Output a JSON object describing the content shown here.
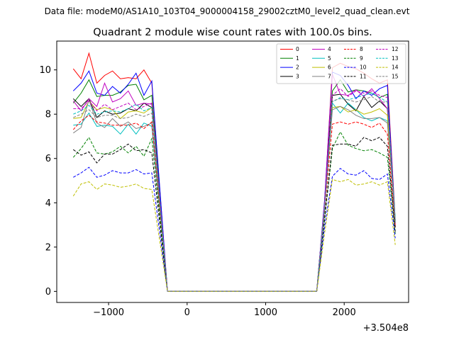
{
  "figure": {
    "suptitle": "Data file: modeM0/AS1A10_103T04_9000004158_29002cztM0_level2_quad_clean.evt"
  },
  "chart_data": {
    "type": "line",
    "title": "Quadrant 2 module wise count rates with 100.0s bins.",
    "xlabel": "",
    "ylabel": "",
    "x_offset_label": "+3.504e8",
    "xlim": [
      -1660,
      2820
    ],
    "ylim": [
      -0.5,
      11.3
    ],
    "xticks": [
      -1000,
      0,
      1000,
      2000
    ],
    "xtick_labels": [
      "−1000",
      "0",
      "1000",
      "2000"
    ],
    "yticks": [
      0,
      2,
      4,
      6,
      8,
      10
    ],
    "ytick_labels": [
      "0",
      "2",
      "4",
      "6",
      "8",
      "10"
    ],
    "grid": false,
    "legend": {
      "placement": "top-right",
      "columns": 4
    },
    "x": [
      -1450,
      -1350,
      -1250,
      -1150,
      -1050,
      -950,
      -850,
      -750,
      -650,
      -550,
      -450,
      -250,
      -150,
      -50,
      50,
      150,
      250,
      350,
      450,
      550,
      650,
      750,
      850,
      950,
      1050,
      1150,
      1250,
      1350,
      1450,
      1550,
      1650,
      1750,
      1850,
      1950,
      2050,
      2150,
      2250,
      2350,
      2450,
      2550,
      2650
    ],
    "series": [
      {
        "name": "0",
        "color": "#ff0000",
        "dash": "solid",
        "values": [
          10.05,
          9.6,
          10.75,
          9.4,
          9.75,
          9.95,
          9.6,
          9.65,
          9.6,
          10,
          9.4,
          0,
          0,
          0,
          0,
          0,
          0,
          0,
          0,
          0,
          0,
          0,
          0,
          0,
          0,
          0,
          0,
          0,
          0,
          0,
          0,
          4,
          10.1,
          10.3,
          10.15,
          10.05,
          9.85,
          9.6,
          9.4,
          9.55,
          3.2
        ]
      },
      {
        "name": "1",
        "color": "#008000",
        "dash": "solid",
        "values": [
          8.5,
          8.95,
          9.55,
          8.8,
          8.85,
          8.85,
          9,
          9.3,
          9.35,
          8.65,
          8.85,
          0,
          0,
          0,
          0,
          0,
          0,
          0,
          0,
          0,
          0,
          0,
          0,
          0,
          0,
          0,
          0,
          0,
          0,
          0,
          0,
          4,
          9.05,
          9.55,
          9,
          9.1,
          9.05,
          8.95,
          8.75,
          8.9,
          3.2
        ]
      },
      {
        "name": "2",
        "color": "#0000ff",
        "dash": "solid",
        "values": [
          9.05,
          9.4,
          9.95,
          8.95,
          8.85,
          9.25,
          8.95,
          9.35,
          9.85,
          8.85,
          9.5,
          0,
          0,
          0,
          0,
          0,
          0,
          0,
          0,
          0,
          0,
          0,
          0,
          0,
          0,
          0,
          0,
          0,
          0,
          0,
          0,
          4.1,
          9.9,
          9.75,
          9.3,
          8.7,
          9.05,
          8.85,
          9.15,
          9.3,
          3.1
        ]
      },
      {
        "name": "3",
        "color": "#000000",
        "dash": "solid",
        "values": [
          8.7,
          8.35,
          8.7,
          7.85,
          8.15,
          8,
          8.05,
          8.25,
          8.15,
          8.5,
          8.3,
          0,
          0,
          0,
          0,
          0,
          0,
          0,
          0,
          0,
          0,
          0,
          0,
          0,
          0,
          0,
          0,
          0,
          0,
          0,
          0,
          3.9,
          8.85,
          8.9,
          8.45,
          8.15,
          8.8,
          8.3,
          8.6,
          8.25,
          2.9
        ]
      },
      {
        "name": "4",
        "color": "#bf00bf",
        "dash": "solid",
        "values": [
          8.6,
          8.15,
          8.7,
          8.35,
          9.4,
          8.55,
          8.7,
          9.05,
          8.4,
          8.5,
          8.45,
          0,
          0,
          0,
          0,
          0,
          0,
          0,
          0,
          0,
          0,
          0,
          0,
          0,
          0,
          0,
          0,
          0,
          0,
          0,
          0,
          4,
          9.8,
          8.9,
          8.85,
          9.1,
          8.8,
          9.15,
          8.7,
          8.25,
          3
        ]
      },
      {
        "name": "5",
        "color": "#00bfbf",
        "dash": "solid",
        "values": [
          7.5,
          7.55,
          8.05,
          7.45,
          7.5,
          7.45,
          7.1,
          7.55,
          7.1,
          7.6,
          7.45,
          0,
          0,
          0,
          0,
          0,
          0,
          0,
          0,
          0,
          0,
          0,
          0,
          0,
          0,
          0,
          0,
          0,
          0,
          0,
          0,
          3.8,
          8.5,
          8.05,
          8.5,
          8.2,
          7.85,
          7.7,
          7.85,
          7.7,
          3.3
        ]
      },
      {
        "name": "6",
        "color": "#bfbf00",
        "dash": "solid",
        "values": [
          7.8,
          7.85,
          8.6,
          8.2,
          8.3,
          8.2,
          7.8,
          8.1,
          8.15,
          8.05,
          8.3,
          0,
          0,
          0,
          0,
          0,
          0,
          0,
          0,
          0,
          0,
          0,
          0,
          0,
          0,
          0,
          0,
          0,
          0,
          0,
          0,
          3.7,
          8.3,
          8.35,
          8.1,
          8.2,
          8,
          8.1,
          8.25,
          7.95,
          3.1
        ]
      },
      {
        "name": "7",
        "color": "#808080",
        "dash": "solid",
        "values": [
          7.15,
          7.4,
          8.65,
          7.6,
          7.4,
          7.8,
          7.45,
          7.65,
          7.35,
          7.45,
          7.6,
          0,
          0,
          0,
          0,
          0,
          0,
          0,
          0,
          0,
          0,
          0,
          0,
          0,
          0,
          0,
          0,
          0,
          0,
          0,
          0,
          3.8,
          8.2,
          8.35,
          8.2,
          7.95,
          7.8,
          7.8,
          7.85,
          7.6,
          3.2
        ]
      },
      {
        "name": "8",
        "color": "#ff0000",
        "dash": "dashed",
        "values": [
          7.3,
          7.7,
          7.95,
          7.65,
          7.6,
          7.5,
          7.5,
          7.5,
          7.6,
          7.35,
          7.65,
          0,
          0,
          0,
          0,
          0,
          0,
          0,
          0,
          0,
          0,
          0,
          0,
          0,
          0,
          0,
          0,
          0,
          0,
          0,
          0,
          3.6,
          7.55,
          7.65,
          7.55,
          7.65,
          7.55,
          7.4,
          7.6,
          7.1,
          2.9
        ]
      },
      {
        "name": "9",
        "color": "#008000",
        "dash": "dashed",
        "values": [
          6.05,
          6.45,
          6.95,
          6.25,
          6.2,
          6.3,
          6.55,
          6.25,
          6.55,
          6.1,
          6.9,
          0,
          0,
          0,
          0,
          0,
          0,
          0,
          0,
          0,
          0,
          0,
          0,
          0,
          0,
          0,
          0,
          0,
          0,
          0,
          0,
          3.2,
          6.45,
          7.2,
          6.6,
          6.45,
          6.35,
          6.4,
          6.25,
          6.05,
          2.6
        ]
      },
      {
        "name": "10",
        "color": "#0000ff",
        "dash": "dashed",
        "values": [
          5.15,
          5.35,
          5.6,
          5.15,
          5.25,
          5.45,
          5.35,
          5.35,
          5.5,
          5.3,
          5.35,
          0,
          0,
          0,
          0,
          0,
          0,
          0,
          0,
          0,
          0,
          0,
          0,
          0,
          0,
          0,
          0,
          0,
          0,
          0,
          0,
          2.9,
          5.2,
          5.55,
          5.3,
          5.25,
          5.45,
          5.1,
          5.05,
          5.3,
          2.4
        ]
      },
      {
        "name": "11",
        "color": "#000000",
        "dash": "dashed",
        "values": [
          6.4,
          6.15,
          6.3,
          5.8,
          6.2,
          6.2,
          6.4,
          6.65,
          6.35,
          6.4,
          6.25,
          0,
          0,
          0,
          0,
          0,
          0,
          0,
          0,
          0,
          0,
          0,
          0,
          0,
          0,
          0,
          0,
          0,
          0,
          0,
          0,
          3.3,
          6.6,
          6.65,
          6.65,
          6.55,
          6.95,
          6.8,
          6.95,
          6.55,
          2.7
        ]
      },
      {
        "name": "12",
        "color": "#bf00bf",
        "dash": "dashed",
        "values": [
          8.25,
          8.25,
          8.6,
          8.15,
          8.45,
          8.2,
          8.35,
          8.5,
          8.2,
          8.35,
          8.5,
          0,
          0,
          0,
          0,
          0,
          0,
          0,
          0,
          0,
          0,
          0,
          0,
          0,
          0,
          0,
          0,
          0,
          0,
          0,
          0,
          3.7,
          8.85,
          9.15,
          8.8,
          9.05,
          8.95,
          9.05,
          8.85,
          8.75,
          3.1
        ]
      },
      {
        "name": "13",
        "color": "#00bfbf",
        "dash": "dashed",
        "values": [
          8,
          8.15,
          8.4,
          8,
          8.1,
          8.15,
          8.1,
          8.25,
          8.45,
          8.15,
          8.3,
          0,
          0,
          0,
          0,
          0,
          0,
          0,
          0,
          0,
          0,
          0,
          0,
          0,
          0,
          0,
          0,
          0,
          0,
          0,
          0,
          3.7,
          8.55,
          8.75,
          8.65,
          8.75,
          8.85,
          8.95,
          8.75,
          8.55,
          3.1
        ]
      },
      {
        "name": "14",
        "color": "#bfbf00",
        "dash": "dashed",
        "values": [
          4.3,
          4.85,
          4.95,
          4.6,
          4.85,
          4.8,
          4.7,
          4.75,
          4.85,
          4.65,
          4.6,
          0,
          0,
          0,
          0,
          0,
          0,
          0,
          0,
          0,
          0,
          0,
          0,
          0,
          0,
          0,
          0,
          0,
          0,
          0,
          0,
          2.6,
          5.05,
          4.95,
          5.05,
          4.8,
          4.85,
          4.95,
          4.8,
          4.95,
          2.1
        ]
      },
      {
        "name": "15",
        "color": "#808080",
        "dash": "dashed",
        "values": [
          7.85,
          8,
          8.2,
          7.85,
          7.95,
          7.95,
          7.8,
          7.85,
          8,
          7.9,
          8.05,
          0,
          0,
          0,
          0,
          0,
          0,
          0,
          0,
          0,
          0,
          0,
          0,
          0,
          0,
          0,
          0,
          0,
          0,
          0,
          0,
          3.7,
          8.6,
          8.7,
          8.65,
          8.55,
          8.65,
          8.8,
          8.55,
          8.55,
          3.05
        ]
      }
    ]
  }
}
